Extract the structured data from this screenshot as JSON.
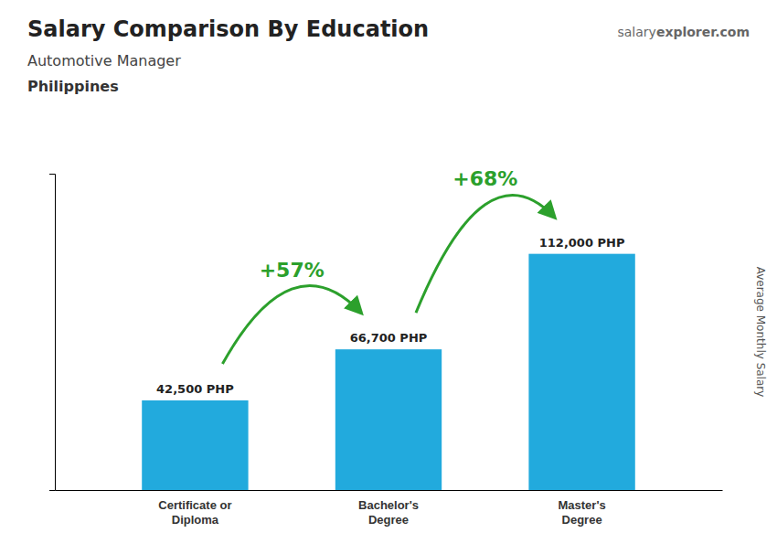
{
  "chart_data": {
    "type": "bar",
    "title": "Salary Comparison By Education",
    "subtitle": "Automotive Manager",
    "country": "Philippines",
    "watermark": [
      "salary",
      "explorer.com"
    ],
    "ylabel": "Average Monthly Salary",
    "categories": [
      "Certificate or\nDiploma",
      "Bachelor's\nDegree",
      "Master's\nDegree"
    ],
    "values": [
      42500,
      66700,
      112000
    ],
    "value_labels": [
      "42,500 PHP",
      "66,700 PHP",
      "112,000 PHP"
    ],
    "data_labels": true,
    "annotations": [
      "+57%",
      "+68%"
    ],
    "color": "#22aadd",
    "ylim": [
      0,
      150000
    ],
    "yticks": [],
    "tick_labels": "x",
    "grid": false
  }
}
